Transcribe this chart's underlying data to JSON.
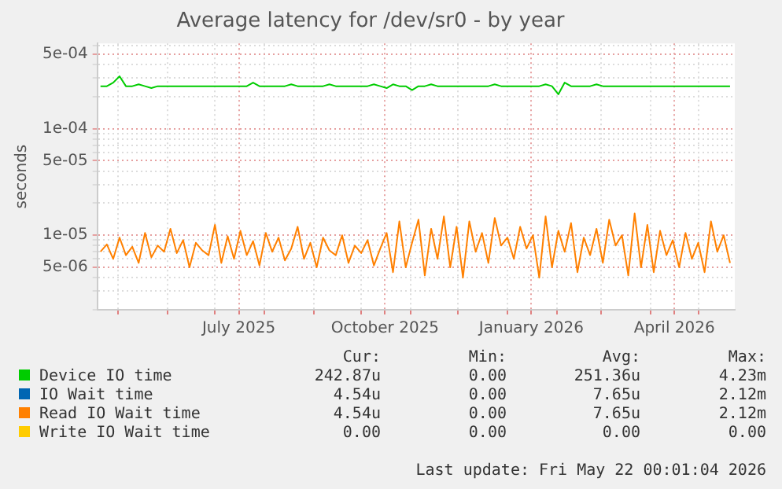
{
  "chart_data": {
    "type": "line",
    "title": "Average latency for /dev/sr0 - by year",
    "ylabel": "seconds",
    "log": true,
    "grid": true,
    "legend": "bottom",
    "marker": "none",
    "line_style": "solid",
    "ylim": [
      2e-06,
      0.00063
    ],
    "yticks": [
      {
        "value": 2e-06,
        "label": null
      },
      {
        "value": 3e-06,
        "label": null
      },
      {
        "value": 4e-06,
        "label": null
      },
      {
        "value": 5e-06,
        "label": "5e-06"
      },
      {
        "value": 6e-06,
        "label": null
      },
      {
        "value": 7e-06,
        "label": null
      },
      {
        "value": 8e-06,
        "label": null
      },
      {
        "value": 9e-06,
        "label": null
      },
      {
        "value": 1e-05,
        "label": "1e-05"
      },
      {
        "value": 2e-05,
        "label": null
      },
      {
        "value": 3e-05,
        "label": null
      },
      {
        "value": 4e-05,
        "label": null
      },
      {
        "value": 5e-05,
        "label": "5e-05"
      },
      {
        "value": 6e-05,
        "label": null
      },
      {
        "value": 7e-05,
        "label": null
      },
      {
        "value": 8e-05,
        "label": null
      },
      {
        "value": 9e-05,
        "label": null
      },
      {
        "value": 0.0001,
        "label": "1e-04"
      },
      {
        "value": 0.0002,
        "label": null
      },
      {
        "value": 0.0003,
        "label": null
      },
      {
        "value": 0.0004,
        "label": null
      },
      {
        "value": 0.0005,
        "label": "5e-04"
      },
      {
        "value": 0.0006,
        "label": null
      }
    ],
    "xlim": [
      "2025-04-18",
      "2026-05-24"
    ],
    "xticks": [
      {
        "value": "2025-05-01",
        "label": null
      },
      {
        "value": "2025-06-01",
        "label": null
      },
      {
        "value": "2025-07-01",
        "label": null
      },
      {
        "value": "2025-07-16",
        "label": "July 2025"
      },
      {
        "value": "2025-08-01",
        "label": null
      },
      {
        "value": "2025-09-01",
        "label": null
      },
      {
        "value": "2025-10-01",
        "label": null
      },
      {
        "value": "2025-10-16",
        "label": "October 2025"
      },
      {
        "value": "2025-11-01",
        "label": null
      },
      {
        "value": "2025-12-01",
        "label": null
      },
      {
        "value": "2026-01-01",
        "label": null
      },
      {
        "value": "2026-01-16",
        "label": "January 2026"
      },
      {
        "value": "2026-02-01",
        "label": null
      },
      {
        "value": "2026-03-01",
        "label": null
      },
      {
        "value": "2026-04-01",
        "label": null
      },
      {
        "value": "2026-04-16",
        "label": "April 2026"
      },
      {
        "value": "2026-05-01",
        "label": null
      }
    ],
    "x": [
      "2025-04-20",
      "2025-04-24",
      "2025-04-28",
      "2025-05-02",
      "2025-05-06",
      "2025-05-10",
      "2025-05-14",
      "2025-05-18",
      "2025-05-22",
      "2025-05-26",
      "2025-05-30",
      "2025-06-03",
      "2025-06-07",
      "2025-06-11",
      "2025-06-15",
      "2025-06-19",
      "2025-06-23",
      "2025-06-27",
      "2025-07-01",
      "2025-07-05",
      "2025-07-09",
      "2025-07-13",
      "2025-07-17",
      "2025-07-21",
      "2025-07-25",
      "2025-07-29",
      "2025-08-02",
      "2025-08-06",
      "2025-08-10",
      "2025-08-14",
      "2025-08-18",
      "2025-08-22",
      "2025-08-26",
      "2025-08-30",
      "2025-09-03",
      "2025-09-07",
      "2025-09-11",
      "2025-09-15",
      "2025-09-19",
      "2025-09-23",
      "2025-09-27",
      "2025-10-01",
      "2025-10-05",
      "2025-10-09",
      "2025-10-13",
      "2025-10-17",
      "2025-10-21",
      "2025-10-25",
      "2025-10-29",
      "2025-11-02",
      "2025-11-06",
      "2025-11-10",
      "2025-11-14",
      "2025-11-18",
      "2025-11-22",
      "2025-11-26",
      "2025-11-30",
      "2025-12-04",
      "2025-12-08",
      "2025-12-12",
      "2025-12-16",
      "2025-12-20",
      "2025-12-24",
      "2025-12-28",
      "2026-01-01",
      "2026-01-05",
      "2026-01-09",
      "2026-01-13",
      "2026-01-17",
      "2026-01-21",
      "2026-01-25",
      "2026-01-29",
      "2026-02-02",
      "2026-02-06",
      "2026-02-10",
      "2026-02-14",
      "2026-02-18",
      "2026-02-22",
      "2026-02-26",
      "2026-03-02",
      "2026-03-06",
      "2026-03-10",
      "2026-03-14",
      "2026-03-18",
      "2026-03-22",
      "2026-03-26",
      "2026-03-30",
      "2026-04-03",
      "2026-04-07",
      "2026-04-11",
      "2026-04-15",
      "2026-04-19",
      "2026-04-23",
      "2026-04-27",
      "2026-05-01",
      "2026-05-05",
      "2026-05-09",
      "2026-05-13",
      "2026-05-17",
      "2026-05-21"
    ],
    "series": [
      {
        "name": "Device IO time",
        "color": "#00cc00",
        "values": [
          0.00025,
          0.00025,
          0.00027,
          0.00031,
          0.00025,
          0.00025,
          0.00026,
          0.00025,
          0.00024,
          0.00025,
          0.00025,
          0.00025,
          0.00025,
          0.00025,
          0.00025,
          0.00025,
          0.00025,
          0.00025,
          0.00025,
          0.00025,
          0.00025,
          0.00025,
          0.00025,
          0.00025,
          0.00027,
          0.00025,
          0.00025,
          0.00025,
          0.00025,
          0.00025,
          0.00026,
          0.00025,
          0.00025,
          0.00025,
          0.00025,
          0.00025,
          0.00026,
          0.00025,
          0.00025,
          0.00025,
          0.00025,
          0.00025,
          0.00025,
          0.00026,
          0.00025,
          0.00024,
          0.00026,
          0.00025,
          0.00025,
          0.00023,
          0.00025,
          0.00025,
          0.00026,
          0.00025,
          0.00025,
          0.00025,
          0.00025,
          0.00025,
          0.00025,
          0.00025,
          0.00025,
          0.00025,
          0.00026,
          0.00025,
          0.00025,
          0.00025,
          0.00025,
          0.00025,
          0.00025,
          0.00025,
          0.00026,
          0.00025,
          0.00021,
          0.00027,
          0.00025,
          0.00025,
          0.00025,
          0.00025,
          0.00026,
          0.00025,
          0.00025,
          0.00025,
          0.00025,
          0.00025,
          0.00025,
          0.00025,
          0.00025,
          0.00025,
          0.00025,
          0.00025,
          0.00025,
          0.00025,
          0.00025,
          0.00025,
          0.00025,
          0.00025,
          0.00025,
          0.00025,
          0.00025,
          0.00025
        ]
      },
      {
        "name": "IO Wait time",
        "color": "#0066b3",
        "values": [
          null,
          null,
          null,
          null,
          null,
          null,
          null,
          null,
          null,
          null,
          null,
          null,
          null,
          null,
          null,
          null,
          null,
          null,
          null,
          null,
          null,
          null,
          null,
          null,
          null,
          null,
          null,
          null,
          null,
          null,
          null,
          null,
          null,
          null,
          null,
          null,
          null,
          null,
          null,
          null,
          null,
          null,
          null,
          null,
          null,
          null,
          null,
          null,
          null,
          null,
          null,
          null,
          null,
          null,
          null,
          null,
          null,
          null,
          null,
          null,
          null,
          null,
          null,
          null,
          null,
          null,
          null,
          null,
          null,
          null,
          null,
          null,
          null,
          null,
          null,
          null,
          null,
          null,
          null,
          null,
          null,
          null,
          null,
          null,
          null,
          null,
          null,
          null,
          null,
          null,
          null,
          null,
          null,
          null,
          null,
          null,
          null,
          null,
          null,
          null
        ]
      },
      {
        "name": "Read IO Wait time",
        "color": "#ff8000",
        "values": [
          7e-06,
          8.2e-06,
          6e-06,
          9.5e-06,
          6.5e-06,
          7.8e-06,
          5.5e-06,
          1.05e-05,
          6.2e-06,
          8e-06,
          7e-06,
          1.15e-05,
          6.8e-06,
          9e-06,
          5e-06,
          8.5e-06,
          7.2e-06,
          6.5e-06,
          1.25e-05,
          5.5e-06,
          9.8e-06,
          6e-06,
          1.1e-05,
          6.5e-06,
          8.8e-06,
          5.2e-06,
          1.05e-05,
          7e-06,
          9.5e-06,
          5.8e-06,
          7.5e-06,
          1.2e-05,
          6e-06,
          8.5e-06,
          5e-06,
          9.5e-06,
          7.2e-06,
          6.5e-06,
          1e-05,
          5.5e-06,
          8e-06,
          6.8e-06,
          9e-06,
          5.2e-06,
          7.5e-06,
          1.05e-05,
          4.5e-06,
          1.35e-05,
          5e-06,
          8.5e-06,
          1.4e-05,
          4.2e-06,
          1.15e-05,
          6e-06,
          1.5e-05,
          5e-06,
          1.2e-05,
          4e-06,
          1.35e-05,
          7e-06,
          1.05e-05,
          5.5e-06,
          1.45e-05,
          8e-06,
          9.5e-06,
          6e-06,
          1.2e-05,
          7.5e-06,
          1e-05,
          4e-06,
          1.5e-05,
          5e-06,
          1.1e-05,
          7e-06,
          1.3e-05,
          4.5e-06,
          9.5e-06,
          6.5e-06,
          1.15e-05,
          5.5e-06,
          1.4e-05,
          8e-06,
          1e-05,
          4.2e-06,
          1.6e-05,
          5e-06,
          1.25e-05,
          4.5e-06,
          1.1e-05,
          6.5e-06,
          9e-06,
          5e-06,
          1.05e-05,
          6e-06,
          8.5e-06,
          4.5e-06,
          1.35e-05,
          7e-06,
          1e-05,
          5.5e-06
        ]
      },
      {
        "name": "Write IO Wait time",
        "color": "#ffcc00",
        "values": [
          null,
          null,
          null,
          null,
          null,
          null,
          null,
          null,
          null,
          null,
          null,
          null,
          null,
          null,
          null,
          null,
          null,
          null,
          null,
          null,
          null,
          null,
          null,
          null,
          null,
          null,
          null,
          null,
          null,
          null,
          null,
          null,
          null,
          null,
          null,
          null,
          null,
          null,
          null,
          null,
          null,
          null,
          null,
          null,
          null,
          null,
          null,
          null,
          null,
          null,
          null,
          null,
          null,
          null,
          null,
          null,
          null,
          null,
          null,
          null,
          null,
          null,
          null,
          null,
          null,
          null,
          null,
          null,
          null,
          null,
          null,
          null,
          null,
          null,
          null,
          null,
          null,
          null,
          null,
          null,
          null,
          null,
          null,
          null,
          null,
          null,
          null,
          null,
          null,
          null,
          null,
          null,
          null,
          null,
          null,
          null,
          null,
          null,
          null,
          null
        ]
      }
    ],
    "annotations": [
      "Cur:",
      "Min:",
      "Avg:",
      "Max:",
      "242.87u",
      "0.00",
      "251.36u",
      "4.23m",
      "4.54u",
      "0.00",
      "7.65u",
      "2.12m",
      "4.54u",
      "0.00",
      "7.65u",
      "2.12m",
      "0.00",
      "0.00",
      "0.00",
      "0.00",
      "Last update: Fri May 22 00:01:04 2026"
    ]
  }
}
